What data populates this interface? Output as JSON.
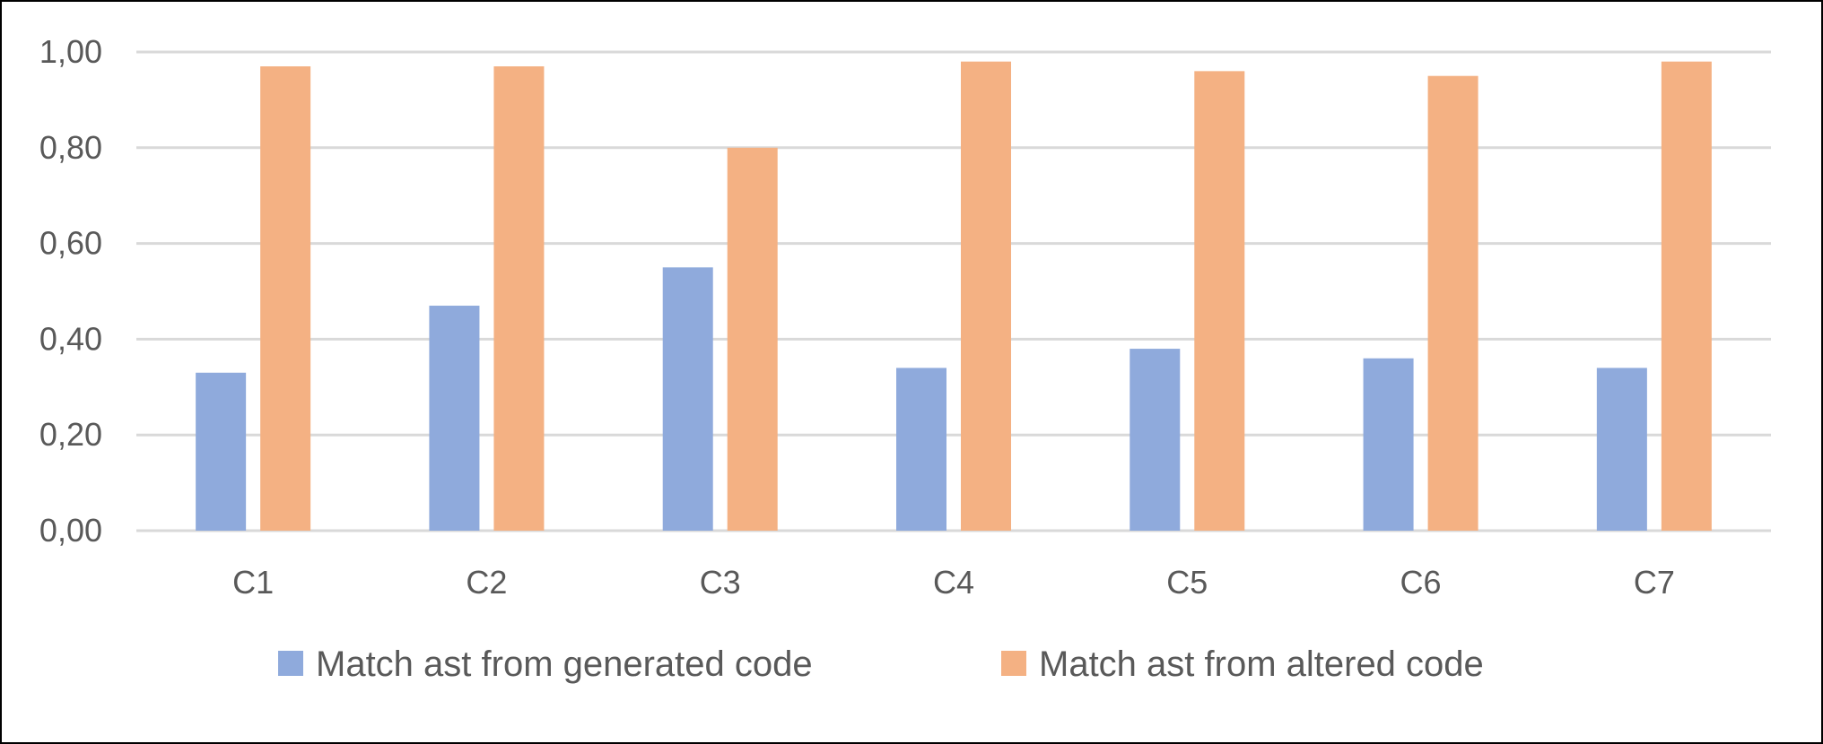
{
  "chart_data": {
    "type": "bar",
    "title": "",
    "xlabel": "",
    "ylabel": "",
    "categories": [
      "C1",
      "C2",
      "C3",
      "C4",
      "C5",
      "C6",
      "C7"
    ],
    "series": [
      {
        "name": "Match ast from generated code",
        "color": "#8FAADC",
        "values": [
          0.33,
          0.47,
          0.55,
          0.34,
          0.38,
          0.36,
          0.34
        ]
      },
      {
        "name": "Match ast from altered code",
        "color": "#F4B183",
        "values": [
          0.97,
          0.97,
          0.8,
          0.98,
          0.96,
          0.95,
          0.98
        ]
      }
    ],
    "ylim": [
      0,
      1.0
    ],
    "yticks": [
      "0,00",
      "0,20",
      "0,40",
      "0,60",
      "0,80",
      "1,00"
    ],
    "grid": true,
    "legend_position": "bottom"
  }
}
